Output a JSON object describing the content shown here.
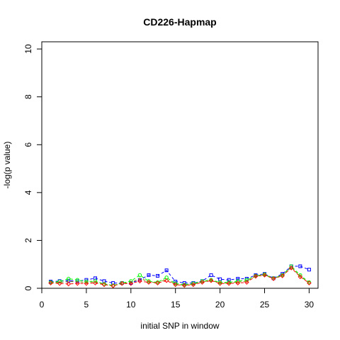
{
  "chart_data": {
    "type": "scatter",
    "title": "CD226-Hapmap",
    "xlabel": "initial SNP in window",
    "ylabel": "-log(p value)",
    "xlim": [
      0,
      31
    ],
    "ylim": [
      0,
      10.3
    ],
    "x_ticks": [
      0,
      5,
      10,
      15,
      20,
      25,
      30
    ],
    "y_ticks": [
      0,
      2,
      4,
      6,
      8,
      10
    ],
    "grid": false,
    "legend": "none",
    "series": [
      {
        "color": "#0000ff",
        "marker": "square",
        "line": "dashed",
        "x": [
          1,
          2,
          3,
          4,
          5,
          6,
          7,
          8,
          9,
          10,
          11,
          12,
          13,
          14,
          15,
          16,
          17,
          18,
          19,
          20,
          21,
          22,
          23,
          24,
          25,
          26,
          27,
          28,
          29,
          30
        ],
        "y": [
          0.28,
          0.3,
          0.32,
          0.3,
          0.35,
          0.42,
          0.3,
          0.22,
          0.22,
          0.22,
          0.35,
          0.55,
          0.52,
          0.75,
          0.28,
          0.22,
          0.22,
          0.3,
          0.55,
          0.38,
          0.35,
          0.4,
          0.4,
          0.55,
          0.6,
          0.42,
          0.6,
          0.92,
          0.92,
          0.78
        ]
      },
      {
        "color": "#00ff00",
        "marker": "circle",
        "line": "dashed",
        "x": [
          1,
          2,
          3,
          4,
          5,
          6,
          7,
          8,
          9,
          10,
          11,
          12,
          13,
          14,
          15,
          16,
          17,
          18,
          19,
          20,
          21,
          22,
          23,
          24,
          25,
          26,
          27,
          28,
          29,
          30
        ],
        "y": [
          0.25,
          0.28,
          0.4,
          0.35,
          0.28,
          0.3,
          0.18,
          0.12,
          0.22,
          0.3,
          0.55,
          0.3,
          0.25,
          0.45,
          0.2,
          0.15,
          0.2,
          0.3,
          0.35,
          0.25,
          0.25,
          0.3,
          0.35,
          0.52,
          0.58,
          0.42,
          0.55,
          0.92,
          0.55,
          0.25
        ]
      },
      {
        "color": "#ff0000",
        "marker": "diamond",
        "line": "dashed",
        "x": [
          1,
          2,
          3,
          4,
          5,
          6,
          7,
          8,
          9,
          10,
          11,
          12,
          13,
          14,
          15,
          16,
          17,
          18,
          19,
          20,
          21,
          22,
          23,
          24,
          25,
          26,
          27,
          28,
          29,
          30
        ],
        "y": [
          0.22,
          0.2,
          0.18,
          0.2,
          0.2,
          0.22,
          0.15,
          0.1,
          0.2,
          0.2,
          0.3,
          0.25,
          0.22,
          0.32,
          0.15,
          0.12,
          0.15,
          0.25,
          0.32,
          0.2,
          0.2,
          0.22,
          0.25,
          0.5,
          0.55,
          0.4,
          0.52,
          0.85,
          0.48,
          0.22
        ]
      },
      {
        "color": "#808000",
        "marker": "none",
        "line": "dashed",
        "x": [
          1,
          2,
          3,
          4,
          5,
          6,
          7,
          8,
          9,
          10,
          11,
          12,
          13,
          14,
          15,
          16,
          17,
          18,
          19,
          20,
          21,
          22,
          23,
          24,
          25,
          26,
          27,
          28,
          29,
          30
        ],
        "y": [
          0.24,
          0.24,
          0.28,
          0.27,
          0.25,
          0.27,
          0.17,
          0.11,
          0.21,
          0.24,
          0.42,
          0.27,
          0.23,
          0.38,
          0.17,
          0.13,
          0.17,
          0.27,
          0.33,
          0.22,
          0.22,
          0.26,
          0.3,
          0.51,
          0.56,
          0.41,
          0.53,
          0.88,
          0.5,
          0.23
        ]
      }
    ]
  }
}
